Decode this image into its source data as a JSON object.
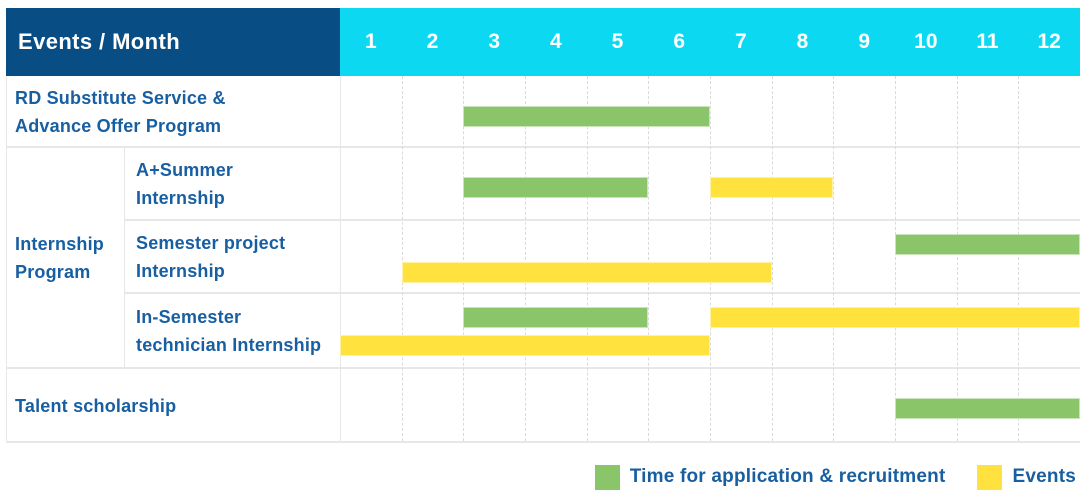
{
  "header": {
    "corner_label": "Events / Month",
    "months": [
      "1",
      "2",
      "3",
      "4",
      "5",
      "6",
      "7",
      "8",
      "9",
      "10",
      "11",
      "12"
    ]
  },
  "colors": {
    "header_bg": "#084D83",
    "months_bg": "#0CD9F1",
    "header_text": "#FFFFFF",
    "label_text": "#185FA2",
    "application": "#8BC56A",
    "events": "#FFE23D",
    "grid": "#E7E7E7"
  },
  "legend": {
    "items": [
      {
        "series": "application",
        "label": "Time for application & recruitment"
      },
      {
        "series": "events",
        "label": "Events"
      }
    ]
  },
  "chart_data": {
    "type": "bar",
    "subtype": "gantt-timeline",
    "corner_label": "Events / Month",
    "x_unit": "month",
    "x_ticks": [
      1,
      2,
      3,
      4,
      5,
      6,
      7,
      8,
      9,
      10,
      11,
      12
    ],
    "series_legend": {
      "application": "Time for application & recruitment",
      "events": "Events"
    },
    "group": {
      "label": "Internship\nProgram",
      "member_rows": [
        1,
        2,
        3
      ]
    },
    "rows": [
      {
        "label": "RD Substitute Service &\nAdvance Offer Program",
        "in_group": false,
        "bars": [
          {
            "series": "application",
            "start_month": 3,
            "end_month": 6,
            "lane": "middle"
          }
        ]
      },
      {
        "label": "A+Summer\nInternship",
        "in_group": true,
        "bars": [
          {
            "series": "application",
            "start_month": 3,
            "end_month": 5,
            "lane": "middle"
          },
          {
            "series": "events",
            "start_month": 7,
            "end_month": 8,
            "lane": "middle"
          }
        ]
      },
      {
        "label": "Semester project\nInternship",
        "in_group": true,
        "bars": [
          {
            "series": "application",
            "start_month": 10,
            "end_month": 12,
            "lane": "upper"
          },
          {
            "series": "events",
            "start_month": 2,
            "end_month": 7,
            "lane": "lower"
          }
        ]
      },
      {
        "label": "In-Semester\ntechnician Internship",
        "in_group": true,
        "bars": [
          {
            "series": "application",
            "start_month": 3,
            "end_month": 5,
            "lane": "upper"
          },
          {
            "series": "events",
            "start_month": 7,
            "end_month": 12,
            "lane": "upper"
          },
          {
            "series": "events",
            "start_month": 1,
            "end_month": 6,
            "lane": "lower"
          }
        ]
      },
      {
        "label": "Talent scholarship",
        "in_group": false,
        "bars": [
          {
            "series": "application",
            "start_month": 10,
            "end_month": 12,
            "lane": "middle"
          }
        ]
      }
    ]
  }
}
